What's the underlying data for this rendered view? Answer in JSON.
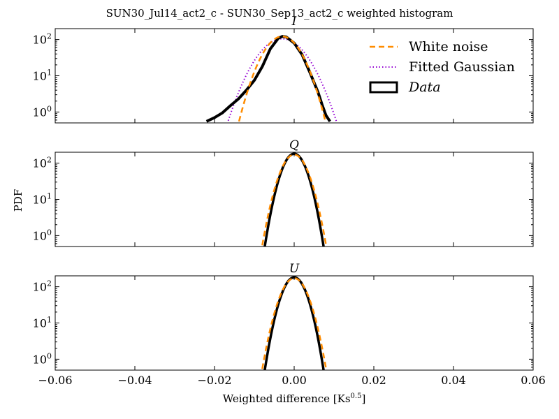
{
  "figure": {
    "suptitle": "SUN30_Jul14_act2_c - SUN30_Sep13_act2_c weighted histogram",
    "xlabel_main": "Weighted difference [Ks",
    "xlabel_exp": "0.5",
    "xlabel_close": "]",
    "ylabel": "PDF"
  },
  "legend": {
    "placement": "top-right of first panel",
    "entries": [
      {
        "label": "White noise",
        "style": "dashed",
        "color": "#ff8c00"
      },
      {
        "label": "Fitted Gaussian",
        "style": "dotted",
        "color": "#9400d3"
      },
      {
        "label": "Data",
        "style": "box",
        "color": "#000000"
      }
    ]
  },
  "chart_data": [
    {
      "type": "line",
      "title": "I",
      "xlim": [
        -0.06,
        0.06
      ],
      "ylim": [
        0.5,
        200
      ],
      "yscale": "log",
      "xticks": [
        "−0.06",
        "−0.04",
        "−0.02",
        "0.00",
        "0.02",
        "0.04",
        "0.06"
      ],
      "yticks": [
        {
          "v": 1,
          "base": "10",
          "exp": "0"
        },
        {
          "v": 10,
          "base": "10",
          "exp": "1"
        },
        {
          "v": 100,
          "base": "10",
          "exp": "2"
        }
      ],
      "series": [
        {
          "name": "White noise",
          "model": "gaussian",
          "mu": -0.003,
          "sigma": 0.0033,
          "peak": 122,
          "color": "#ff8c00"
        },
        {
          "name": "Fitted Gaussian",
          "model": "gaussian",
          "mu": -0.003,
          "sigma": 0.0042,
          "peak": 105,
          "color": "#9400d3"
        },
        {
          "name": "Data",
          "x": [
            -0.022,
            -0.02,
            -0.018,
            -0.016,
            -0.014,
            -0.012,
            -0.01,
            -0.008,
            -0.006,
            -0.004,
            -0.003,
            -0.002,
            0.0,
            0.002,
            0.004,
            0.006,
            0.007,
            0.008,
            0.009
          ],
          "y": [
            0.55,
            0.7,
            0.95,
            1.5,
            2.3,
            4.0,
            7.5,
            18,
            55,
            108,
            122,
            118,
            80,
            38,
            12,
            3.5,
            1.6,
            0.8,
            0.55
          ],
          "color": "#000000"
        }
      ]
    },
    {
      "type": "line",
      "title": "Q",
      "xlim": [
        -0.06,
        0.06
      ],
      "ylim": [
        0.5,
        200
      ],
      "yscale": "log",
      "xticks": [
        "−0.06",
        "−0.04",
        "−0.02",
        "0.00",
        "0.02",
        "0.04",
        "0.06"
      ],
      "yticks": [
        {
          "v": 1,
          "base": "10",
          "exp": "0"
        },
        {
          "v": 10,
          "base": "10",
          "exp": "1"
        },
        {
          "v": 100,
          "base": "10",
          "exp": "2"
        }
      ],
      "series": [
        {
          "name": "White noise",
          "model": "gaussian",
          "mu": 0.0,
          "sigma": 0.00236,
          "peak": 172,
          "color": "#ff8c00"
        },
        {
          "name": "Fitted Gaussian",
          "model": "gaussian",
          "mu": 0.0,
          "sigma": 0.00217,
          "peak": 182,
          "color": "#9400d3"
        },
        {
          "name": "Data",
          "model": "gaussian",
          "mu": 0.0,
          "sigma": 0.00215,
          "peak": 182,
          "color": "#000000"
        }
      ]
    },
    {
      "type": "line",
      "title": "U",
      "xlim": [
        -0.06,
        0.06
      ],
      "ylim": [
        0.5,
        200
      ],
      "yscale": "log",
      "xticks": [
        "−0.06",
        "−0.04",
        "−0.02",
        "0.00",
        "0.02",
        "0.04",
        "0.06"
      ],
      "yticks": [
        {
          "v": 1,
          "base": "10",
          "exp": "0"
        },
        {
          "v": 10,
          "base": "10",
          "exp": "1"
        },
        {
          "v": 100,
          "base": "10",
          "exp": "2"
        }
      ],
      "series": [
        {
          "name": "White noise",
          "model": "gaussian",
          "mu": 0.0,
          "sigma": 0.00236,
          "peak": 172,
          "color": "#ff8c00"
        },
        {
          "name": "Fitted Gaussian",
          "model": "gaussian",
          "mu": 0.0,
          "sigma": 0.00217,
          "peak": 182,
          "color": "#9400d3"
        },
        {
          "name": "Data",
          "model": "gaussian",
          "mu": 0.0,
          "sigma": 0.00215,
          "peak": 182,
          "color": "#000000"
        }
      ]
    }
  ]
}
